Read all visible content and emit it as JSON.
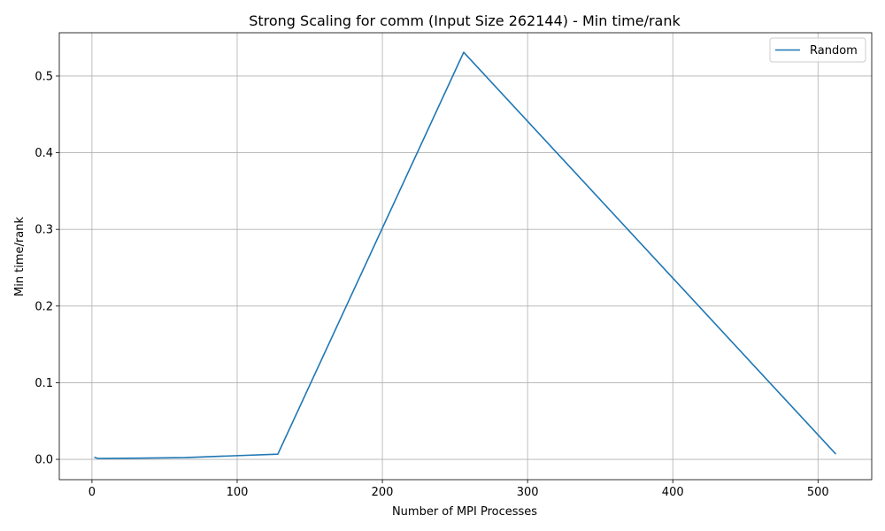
{
  "chart_data": {
    "type": "line",
    "title": "Strong Scaling for comm (Input Size 262144) - Min time/rank",
    "xlabel": "Number of MPI Processes",
    "ylabel": "Min time/rank",
    "xlim": [
      -22.5,
      537
    ],
    "ylim": [
      -0.0265,
      0.5565
    ],
    "xticks": [
      0,
      100,
      200,
      300,
      400,
      500
    ],
    "yticks": [
      0.0,
      0.1,
      0.2,
      0.3,
      0.4,
      0.5
    ],
    "xtick_labels": [
      "0",
      "100",
      "200",
      "300",
      "400",
      "500"
    ],
    "ytick_labels": [
      "0.0",
      "0.1",
      "0.2",
      "0.3",
      "0.4",
      "0.5"
    ],
    "grid": true,
    "legend_position": "upper-right",
    "series": [
      {
        "name": "Random",
        "color": "#1f77b4",
        "x": [
          2,
          4,
          8,
          16,
          32,
          64,
          128,
          256,
          512
        ],
        "y": [
          0.0025,
          0.0012,
          0.0011,
          0.0013,
          0.0016,
          0.0023,
          0.0068,
          0.531,
          0.0075
        ]
      }
    ]
  }
}
